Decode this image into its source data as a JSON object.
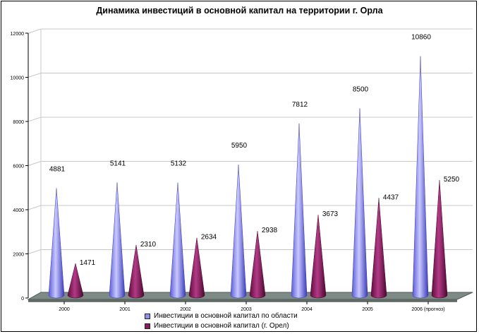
{
  "chart_data": {
    "type": "bar",
    "title": "Динамика инвестиций в основной капитал на территории г. Орла",
    "categories": [
      "2000",
      "2001",
      "2002",
      "2003",
      "2004",
      "2005",
      "2006 (прогноз)"
    ],
    "ylim": [
      0,
      12000
    ],
    "yticks": [
      0,
      2000,
      4000,
      6000,
      8000,
      10000,
      12000
    ],
    "grid": true,
    "legend_position": "bottom",
    "series": [
      {
        "name": "Инвестиции  в основной  капитал по области",
        "values": [
          4881,
          5141,
          5132,
          5950,
          7812,
          8500,
          10860
        ],
        "color": "#8f8ff2"
      },
      {
        "name": "Инвестиции  в основной  капитал  (г. Орел)",
        "values": [
          1471,
          2310,
          2634,
          2938,
          3673,
          4437,
          5250
        ],
        "color": "#8b1a5e"
      }
    ]
  }
}
